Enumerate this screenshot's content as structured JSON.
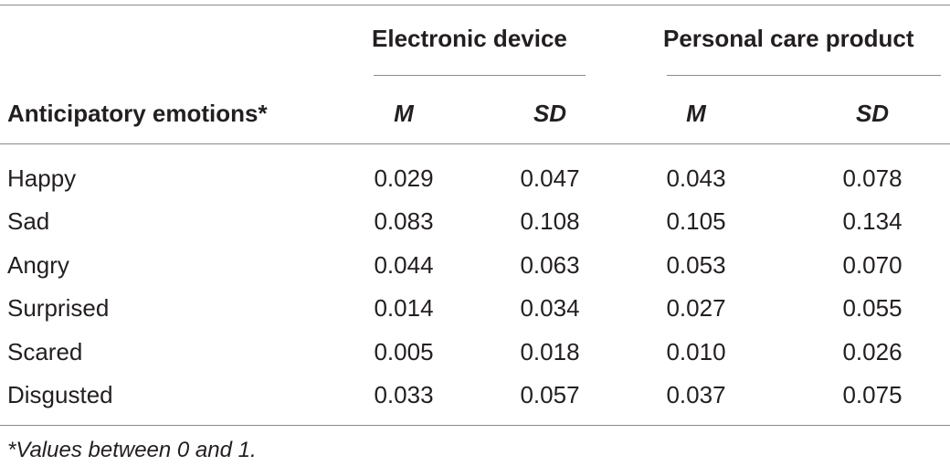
{
  "table": {
    "groups": [
      "Electronic device",
      "Personal care product"
    ],
    "row_header": "Anticipatory emotions*",
    "stat_headers": [
      "M",
      "SD",
      "M",
      "SD"
    ],
    "rows": [
      {
        "label": "Happy",
        "values": [
          "0.029",
          "0.047",
          "0.043",
          "0.078"
        ]
      },
      {
        "label": "Sad",
        "values": [
          "0.083",
          "0.108",
          "0.105",
          "0.134"
        ]
      },
      {
        "label": "Angry",
        "values": [
          "0.044",
          "0.063",
          "0.053",
          "0.070"
        ]
      },
      {
        "label": "Surprised",
        "values": [
          "0.014",
          "0.034",
          "0.027",
          "0.055"
        ]
      },
      {
        "label": "Scared",
        "values": [
          "0.005",
          "0.018",
          "0.010",
          "0.026"
        ]
      },
      {
        "label": "Disgusted",
        "values": [
          "0.033",
          "0.057",
          "0.037",
          "0.075"
        ]
      }
    ],
    "footnote": "*Values between 0 and 1."
  }
}
